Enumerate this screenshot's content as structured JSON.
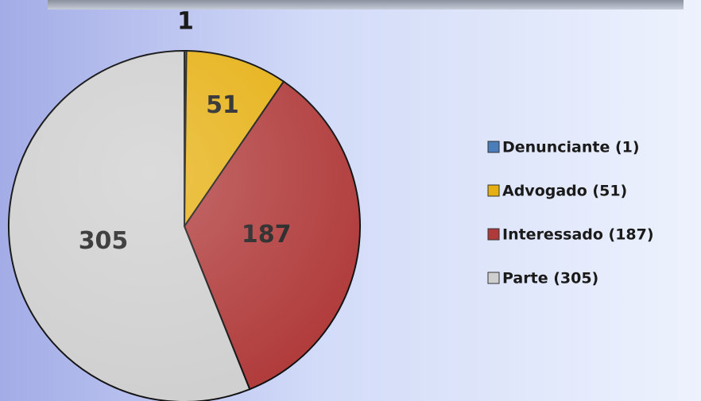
{
  "chart_data": {
    "type": "pie",
    "categories": [
      "Denunciante (1)",
      "Advogado (51)",
      "Interessado (187)",
      "Parte (305)"
    ],
    "values": [
      1,
      51,
      187,
      305
    ],
    "colors": [
      "#4a7ebb",
      "#e6b012",
      "#b03a3a",
      "#cfcfcf"
    ],
    "legend": "right"
  }
}
